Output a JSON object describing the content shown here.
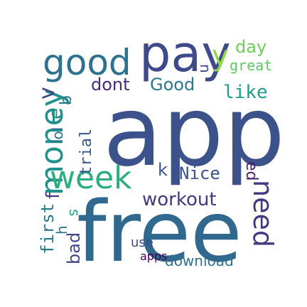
{
  "words": [
    {
      "id": "app",
      "text": "app",
      "color": "#3b528b"
    },
    {
      "id": "free",
      "text": "free",
      "color": "#31688e"
    },
    {
      "id": "pay",
      "text": "pay",
      "color": "#3e4a89"
    },
    {
      "id": "good",
      "text": "good",
      "color": "#2c728e"
    },
    {
      "id": "money",
      "text": "money",
      "color": "#21918c"
    },
    {
      "id": "week",
      "text": "week",
      "color": "#29af7f"
    },
    {
      "id": "need",
      "text": "need",
      "color": "#453781"
    },
    {
      "id": "workout",
      "text": "workout",
      "color": "#453781"
    },
    {
      "id": "Nice",
      "text": "Nice",
      "color": "#3b528b"
    },
    {
      "id": "Good",
      "text": "Good",
      "color": "#2a788e"
    },
    {
      "id": "dont",
      "text": "dont",
      "color": "#472c7a"
    },
    {
      "id": "like",
      "text": "like",
      "color": "#1f9e89"
    },
    {
      "id": "day",
      "text": "day",
      "color": "#6ece58"
    },
    {
      "id": "great",
      "text": "great",
      "color": "#5ec962"
    },
    {
      "id": "trial",
      "text": "trial",
      "color": "#3a548c"
    },
    {
      "id": "first",
      "text": "first",
      "color": "#2a788e"
    },
    {
      "id": "bad",
      "text": "bad",
      "color": "#414487"
    },
    {
      "id": "use",
      "text": "use",
      "color": "#3e4a89"
    },
    {
      "id": "apps",
      "text": "apps",
      "color": "#440154"
    },
    {
      "id": "download",
      "text": "download",
      "color": "#2c728e"
    },
    {
      "id": "lol",
      "text": "lol",
      "color": "#2c728e"
    },
    {
      "id": "y",
      "text": "y",
      "color": "#8fd744"
    },
    {
      "id": "s",
      "text": "s",
      "color": "#21a585"
    },
    {
      "id": "v",
      "text": "v",
      "color": "#3f4889"
    },
    {
      "id": "b",
      "text": "b",
      "color": "#2a788e"
    },
    {
      "id": "f",
      "text": "f",
      "color": "#443983"
    },
    {
      "id": "e",
      "text": "e",
      "color": "#21918c"
    },
    {
      "id": "k",
      "text": "k",
      "color": "#3a548c"
    },
    {
      "id": "h",
      "text": "h",
      "color": "#2a788e"
    },
    {
      "id": "ed",
      "text": "ed",
      "color": "#481d6f"
    },
    {
      "id": "n",
      "text": "n",
      "color": "#3e4a89"
    }
  ]
}
